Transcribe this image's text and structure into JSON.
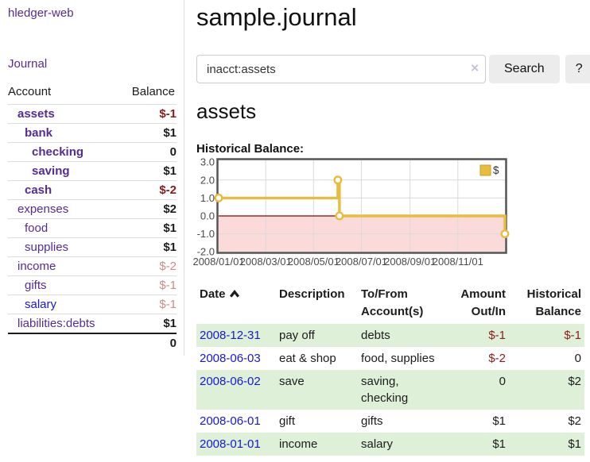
{
  "app": {
    "title": "hledger-web"
  },
  "sidebar": {
    "journal_link": "Journal",
    "accounts_header": {
      "account": "Account",
      "balance": "Balance"
    },
    "accounts": [
      {
        "name": "assets",
        "indent": 1,
        "bold": true,
        "balance": "$-1",
        "neg": "strong",
        "link": "purple"
      },
      {
        "name": "bank",
        "indent": 2,
        "bold": true,
        "balance": "$1",
        "neg": "none",
        "link": "purple"
      },
      {
        "name": "checking",
        "indent": 3,
        "bold": true,
        "balance": "0",
        "neg": "none",
        "link": "purple"
      },
      {
        "name": "saving",
        "indent": 3,
        "bold": true,
        "balance": "$1",
        "neg": "none",
        "link": "purple"
      },
      {
        "name": "cash",
        "indent": 2,
        "bold": true,
        "balance": "$-2",
        "neg": "strong",
        "link": "purple"
      },
      {
        "name": "expenses",
        "indent": 1,
        "bold": false,
        "balance": "$2",
        "neg": "none",
        "link": "purple"
      },
      {
        "name": "food",
        "indent": 2,
        "bold": false,
        "balance": "$1",
        "neg": "none",
        "link": "purple"
      },
      {
        "name": "supplies",
        "indent": 2,
        "bold": false,
        "balance": "$1",
        "neg": "none",
        "link": "purple"
      },
      {
        "name": "income",
        "indent": 1,
        "bold": false,
        "balance": "$-2",
        "neg": "pale",
        "link": "purple"
      },
      {
        "name": "gifts",
        "indent": 2,
        "bold": false,
        "balance": "$-1",
        "neg": "pale",
        "link": "purple"
      },
      {
        "name": "salary",
        "indent": 2,
        "bold": false,
        "balance": "$-1",
        "neg": "pale",
        "link": "blue"
      },
      {
        "name": "liabilities:debts",
        "indent": 1,
        "bold": false,
        "balance": "$1",
        "neg": "none",
        "link": "purple"
      }
    ],
    "total": "0"
  },
  "header": {
    "title": "sample.journal"
  },
  "search": {
    "value": "inacct:assets",
    "clear_icon": "×",
    "search_button": "Search",
    "help_button": "?"
  },
  "register": {
    "heading": "assets",
    "chart_label": "Historical Balance:",
    "table": {
      "col_date": "Date",
      "col_description": "Description",
      "col_accounts": "To/From Account(s)",
      "col_amount": "Amount Out/In",
      "col_balance": "Historical Balance",
      "rows": [
        {
          "date": "2008-12-31",
          "description": "pay off",
          "accounts": "debts",
          "amount": "$-1",
          "amount_neg": true,
          "balance": "$-1",
          "balance_neg": true
        },
        {
          "date": "2008-06-03",
          "description": "eat & shop",
          "accounts": "food, supplies",
          "amount": "$-2",
          "amount_neg": true,
          "balance": "0",
          "balance_neg": false
        },
        {
          "date": "2008-06-02",
          "description": "save",
          "accounts": "saving, checking",
          "amount": "0",
          "amount_neg": false,
          "balance": "$2",
          "balance_neg": false
        },
        {
          "date": "2008-06-01",
          "description": "gift",
          "accounts": "gifts",
          "amount": "$1",
          "amount_neg": false,
          "balance": "$2",
          "balance_neg": false
        },
        {
          "date": "2008-01-01",
          "description": "income",
          "accounts": "salary",
          "amount": "$1",
          "amount_neg": false,
          "balance": "$1",
          "balance_neg": false
        }
      ]
    }
  },
  "chart_data": {
    "type": "line",
    "step": true,
    "title": "Historical Balance:",
    "legend": "$",
    "legend_position": "top-right",
    "grid": true,
    "x_range": [
      "2008-01-01",
      "2008-12-31"
    ],
    "ylim": [
      -2.0,
      3.0
    ],
    "y_ticks": [
      "3.0",
      "2.0",
      "1.0",
      "0.0",
      "-1.0",
      "-2.0"
    ],
    "y_tick_values": [
      3,
      2,
      1,
      0,
      -1,
      -2
    ],
    "x_ticks": [
      "2008/01/01",
      "2008/03/01",
      "2008/05/01",
      "2008/07/01",
      "2008/09/01",
      "2008/11/01"
    ],
    "x_tick_dates": [
      "2008-01-01",
      "2008-03-01",
      "2008-05-01",
      "2008-07-01",
      "2008-09-01",
      "2008-11-01"
    ],
    "series": [
      {
        "name": "$",
        "points": [
          [
            "2008-01-01",
            1
          ],
          [
            "2008-06-01",
            2
          ],
          [
            "2008-06-03",
            0
          ],
          [
            "2008-12-31",
            -1
          ]
        ]
      }
    ],
    "colors": {
      "line": "#e8bc3e",
      "point_fill": "#ffffff",
      "negative_region": "#fbdada",
      "zero_line": "#8b0000",
      "border": "#545454",
      "gridline": "#dadada",
      "tick_text": "#4a4a4a",
      "accent_purple": "#542c94",
      "link_blue": "#1717d9",
      "negative_red": "#8b1b1b",
      "row_stripe_green": "#dff0d8"
    }
  }
}
